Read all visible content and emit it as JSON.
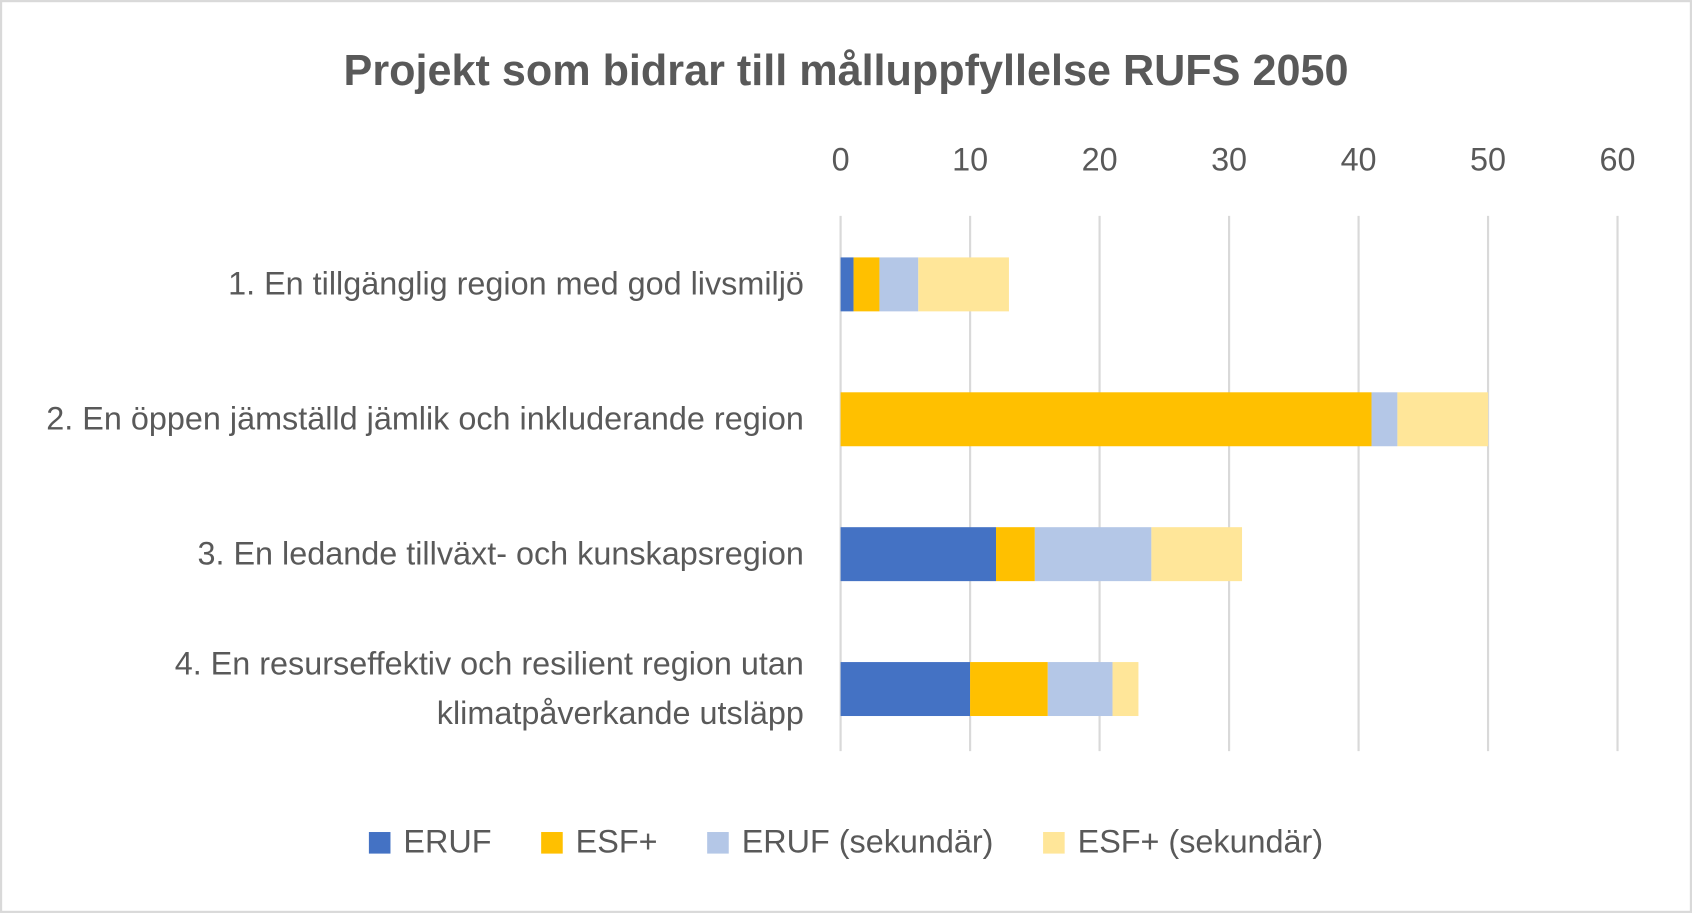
{
  "chart_data": {
    "type": "stacked-bar-horizontal",
    "title": "Projekt som bidrar till målluppfyllelse RUFS 2050",
    "categories": [
      "1. En tillgänglig region med god livsmiljö",
      "2. En öppen jämställd jämlik och inkluderande region",
      "3. En ledande tillväxt- och kunskapsregion",
      "4. En resurseffektiv och resilient region utan klimatpåverkande utsläpp"
    ],
    "series": [
      {
        "name": "ERUF",
        "color": "#4472c4",
        "values": [
          1,
          0,
          12,
          10
        ]
      },
      {
        "name": "ESF+",
        "color": "#ffc000",
        "values": [
          2,
          41,
          3,
          6
        ]
      },
      {
        "name": "ERUF (sekundär)",
        "color": "#b4c7e7",
        "values": [
          3,
          2,
          9,
          5
        ]
      },
      {
        "name": "ESF+ (sekundär)",
        "color": "#ffe699",
        "values": [
          7,
          7,
          7,
          2
        ]
      }
    ],
    "xlim": [
      0,
      60
    ],
    "xticks": [
      0,
      10,
      20,
      30,
      40,
      50,
      60
    ],
    "grid": true,
    "legend": "bottom"
  }
}
